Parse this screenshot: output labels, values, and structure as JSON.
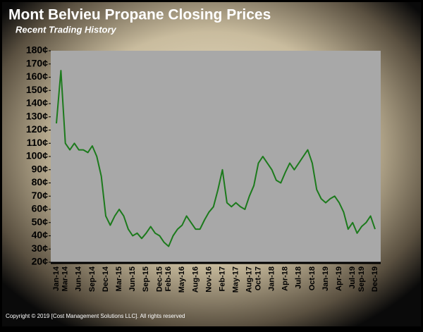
{
  "chart_data": {
    "type": "line",
    "title": "Mont Belvieu Propane Closing Prices",
    "subtitle": "Recent Trading History",
    "footer": "Copyright © 2019 [Cost Management Solutions LLC].  All rights reserved",
    "categories": [
      "Jan-14",
      null,
      "Mar-14",
      null,
      null,
      "Jun-14",
      null,
      null,
      "Sep-14",
      null,
      null,
      "Dec-14",
      null,
      null,
      "Mar-15",
      null,
      null,
      "Jun-15",
      null,
      null,
      "Sep-15",
      null,
      null,
      "Dec-15",
      null,
      "Feb-16",
      null,
      null,
      "May-16",
      null,
      null,
      "Aug-16",
      null,
      null,
      "Nov-16",
      null,
      null,
      "Feb-17",
      null,
      null,
      "May-17",
      null,
      null,
      "Aug-17",
      null,
      "Oct-17",
      null,
      null,
      "Jan-18",
      null,
      null,
      "Apr-18",
      null,
      null,
      "Jul-18",
      null,
      null,
      "Oct-18",
      null,
      null,
      "Jan-19",
      null,
      null,
      "Apr-19",
      null,
      null,
      "Jul-19",
      null,
      "Sep-19",
      null,
      null,
      "Dec-19"
    ],
    "series": [
      {
        "name": "Propane",
        "color": "#1c7a1c",
        "values": [
          125,
          165,
          110,
          105,
          110,
          105,
          105,
          103,
          108,
          100,
          85,
          55,
          48,
          55,
          60,
          55,
          45,
          40,
          42,
          38,
          42,
          47,
          42,
          40,
          35,
          32,
          40,
          45,
          48,
          55,
          50,
          45,
          45,
          52,
          58,
          62,
          75,
          90,
          65,
          62,
          65,
          62,
          60,
          70,
          78,
          95,
          100,
          95,
          90,
          82,
          80,
          88,
          95,
          90,
          95,
          100,
          105,
          95,
          75,
          68,
          65,
          68,
          70,
          65,
          58,
          45,
          50,
          42,
          47,
          50,
          55,
          45
        ]
      }
    ],
    "ylim": [
      20,
      180
    ],
    "yticks": [
      {
        "value": 20,
        "label": "20¢"
      },
      {
        "value": 30,
        "label": "30¢"
      },
      {
        "value": 40,
        "label": "40¢"
      },
      {
        "value": 50,
        "label": "50¢"
      },
      {
        "value": 60,
        "label": "60¢"
      },
      {
        "value": 70,
        "label": "70¢"
      },
      {
        "value": 80,
        "label": "80¢"
      },
      {
        "value": 90,
        "label": "90¢"
      },
      {
        "value": 100,
        "label": "100¢"
      },
      {
        "value": 110,
        "label": "110¢"
      },
      {
        "value": 120,
        "label": "120¢"
      },
      {
        "value": 130,
        "label": "130¢"
      },
      {
        "value": 140,
        "label": "140¢"
      },
      {
        "value": 150,
        "label": "150¢"
      },
      {
        "value": 160,
        "label": "160¢"
      },
      {
        "value": 170,
        "label": "170¢"
      },
      {
        "value": 180,
        "label": "180¢"
      }
    ]
  }
}
